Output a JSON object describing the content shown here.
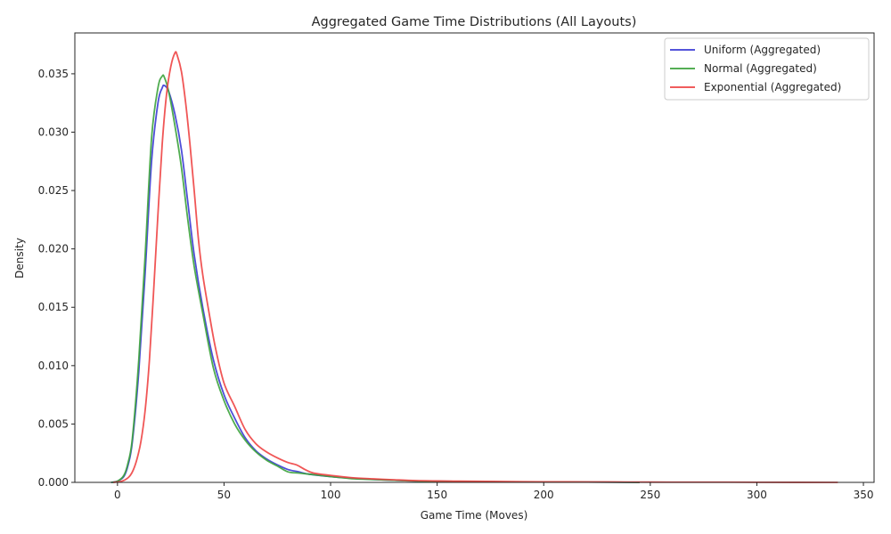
{
  "chart_data": {
    "type": "line",
    "title": "Aggregated Game Time Distributions (All Layouts)",
    "xlabel": "Game Time (Moves)",
    "ylabel": "Density",
    "xlim": [
      -20,
      355
    ],
    "ylim": [
      0,
      0.0385
    ],
    "xticks": [
      0,
      50,
      100,
      150,
      200,
      250,
      300,
      350
    ],
    "yticks": [
      0.0,
      0.005,
      0.01,
      0.015,
      0.02,
      0.025,
      0.03,
      0.035
    ],
    "ytick_labels": [
      "0.000",
      "0.005",
      "0.010",
      "0.015",
      "0.020",
      "0.025",
      "0.030",
      "0.035"
    ],
    "grid": false,
    "legend": "top-right",
    "series": [
      {
        "name": "Uniform (Aggregated)",
        "color": "#3b3bd4",
        "x": [
          -3,
          0,
          3,
          5,
          7,
          10,
          13,
          16,
          19,
          21,
          22,
          24,
          27,
          30,
          33,
          36,
          40,
          45,
          50,
          55,
          60,
          65,
          70,
          75,
          80,
          85,
          90,
          100,
          110,
          120,
          130,
          140,
          150,
          160,
          180,
          200,
          220,
          245
        ],
        "y": [
          0.0,
          0.0001,
          0.0005,
          0.0015,
          0.0035,
          0.0095,
          0.018,
          0.0275,
          0.0325,
          0.0338,
          0.034,
          0.0335,
          0.0315,
          0.0285,
          0.024,
          0.0195,
          0.015,
          0.0105,
          0.0075,
          0.0055,
          0.0038,
          0.0027,
          0.002,
          0.0015,
          0.0011,
          0.0009,
          0.0007,
          0.0005,
          0.00035,
          0.00025,
          0.00018,
          0.00012,
          0.0001,
          8e-05,
          5e-05,
          4e-05,
          3e-05,
          0.0
        ]
      },
      {
        "name": "Normal (Aggregated)",
        "color": "#3ca33c",
        "x": [
          -3,
          0,
          3,
          5,
          7,
          10,
          13,
          16,
          19,
          21,
          22,
          24,
          27,
          30,
          33,
          36,
          40,
          45,
          50,
          55,
          60,
          65,
          70,
          75,
          80,
          85,
          90,
          100,
          110,
          120,
          130,
          140,
          150,
          160,
          180,
          200,
          220,
          245
        ],
        "y": [
          0.0,
          0.0001,
          0.0006,
          0.0017,
          0.0038,
          0.0105,
          0.0195,
          0.0295,
          0.0338,
          0.0348,
          0.0347,
          0.0335,
          0.0305,
          0.027,
          0.0225,
          0.0185,
          0.0145,
          0.0098,
          0.007,
          0.005,
          0.0036,
          0.0026,
          0.0019,
          0.0014,
          0.0009,
          0.0008,
          0.0007,
          0.0005,
          0.00032,
          0.00025,
          0.00018,
          0.00012,
          0.0001,
          8e-05,
          5e-05,
          4e-05,
          3e-05,
          0.0
        ]
      },
      {
        "name": "Exponential (Aggregated)",
        "color": "#ee4444",
        "x": [
          -2,
          2,
          5,
          7,
          9,
          11,
          13,
          15,
          17,
          19,
          21,
          23,
          25,
          27,
          28,
          30,
          32,
          34,
          36,
          38,
          40,
          43,
          46,
          50,
          55,
          60,
          65,
          70,
          75,
          80,
          84,
          88,
          92,
          100,
          110,
          120,
          130,
          140,
          150,
          160,
          180,
          200,
          220,
          240,
          260,
          280,
          300,
          338
        ],
        "y": [
          0.0,
          0.0001,
          0.0004,
          0.0009,
          0.0019,
          0.0035,
          0.0062,
          0.0105,
          0.0165,
          0.023,
          0.029,
          0.0332,
          0.0356,
          0.0368,
          0.0366,
          0.0352,
          0.0325,
          0.029,
          0.025,
          0.0208,
          0.0178,
          0.0145,
          0.0115,
          0.0085,
          0.0065,
          0.0045,
          0.0033,
          0.0026,
          0.0021,
          0.0017,
          0.0015,
          0.0011,
          0.0008,
          0.0006,
          0.0004,
          0.0003,
          0.00022,
          0.00015,
          0.00012,
          0.0001,
          7e-05,
          5e-05,
          4e-05,
          3e-05,
          2e-05,
          2e-05,
          1e-05,
          0.0
        ]
      }
    ]
  }
}
